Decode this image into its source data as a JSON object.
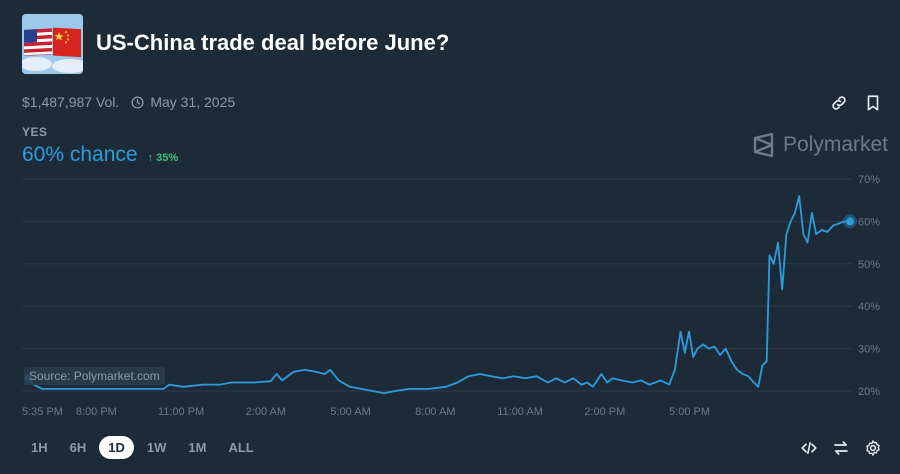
{
  "market": {
    "title": "US-China trade deal before June?",
    "volume": "$1,487,987 Vol.",
    "end_date": "May 31, 2025",
    "outcome_label": "YES",
    "chance": "60% chance",
    "change": "35%",
    "brand": "Polymarket",
    "source": "Source: Polymarket.com"
  },
  "ranges": [
    "1H",
    "6H",
    "1D",
    "1W",
    "1M",
    "ALL"
  ],
  "active_range": "1D",
  "colors": {
    "background": "#1d2b39",
    "line": "#2d9cdb",
    "up": "#3cc07a",
    "muted": "#8d9aa8"
  },
  "icons": {
    "top": [
      "link-icon",
      "bookmark-icon"
    ],
    "bottom": [
      "embed-icon",
      "swap-icon",
      "settings-icon"
    ]
  },
  "chart_data": {
    "type": "line",
    "ylim": [
      18,
      70
    ],
    "y_ticks": [
      20,
      30,
      40,
      50,
      60,
      70
    ],
    "y_tick_labels": [
      "20%",
      "30%",
      "40%",
      "50%",
      "60%",
      "70%"
    ],
    "x_ticks": [
      "5:35 PM",
      "8:00 PM",
      "11:00 PM",
      "2:00 AM",
      "5:00 AM",
      "8:00 AM",
      "11:00 AM",
      "2:00 PM",
      "5:00 PM"
    ],
    "x_tick_hours": [
      0,
      2.42,
      5.42,
      8.42,
      11.42,
      14.42,
      17.42,
      20.42,
      23.42
    ],
    "series": [
      {
        "values": [
          [
            0,
            23
          ],
          [
            0.2,
            21.5
          ],
          [
            0.5,
            20.5
          ],
          [
            1.5,
            20.5
          ],
          [
            3,
            20.5
          ],
          [
            4.8,
            20.5
          ],
          [
            5.0,
            21.5
          ],
          [
            5.5,
            21
          ],
          [
            6.2,
            21.5
          ],
          [
            6.8,
            21.5
          ],
          [
            7.2,
            22
          ],
          [
            8.0,
            22
          ],
          [
            8.6,
            22.3
          ],
          [
            8.8,
            24
          ],
          [
            9.0,
            22.5
          ],
          [
            9.4,
            24.5
          ],
          [
            9.8,
            25
          ],
          [
            10.2,
            24.5
          ],
          [
            10.5,
            24
          ],
          [
            10.7,
            25
          ],
          [
            11.0,
            22.5
          ],
          [
            11.4,
            21
          ],
          [
            11.8,
            20.5
          ],
          [
            12.2,
            20
          ],
          [
            12.6,
            19.5
          ],
          [
            13.0,
            20
          ],
          [
            13.5,
            20.5
          ],
          [
            14.2,
            20.5
          ],
          [
            14.8,
            21
          ],
          [
            15.2,
            22
          ],
          [
            15.6,
            23.5
          ],
          [
            16.0,
            24
          ],
          [
            16.4,
            23.5
          ],
          [
            16.8,
            23
          ],
          [
            17.2,
            23.5
          ],
          [
            17.6,
            23
          ],
          [
            18.0,
            23.5
          ],
          [
            18.4,
            22
          ],
          [
            18.7,
            23
          ],
          [
            19.0,
            22
          ],
          [
            19.3,
            23
          ],
          [
            19.6,
            21.5
          ],
          [
            19.8,
            22
          ],
          [
            20.0,
            21
          ],
          [
            20.3,
            24
          ],
          [
            20.5,
            22
          ],
          [
            20.7,
            23
          ],
          [
            21.0,
            22.5
          ],
          [
            21.4,
            22
          ],
          [
            21.7,
            22.5
          ],
          [
            22.0,
            21.5
          ],
          [
            22.4,
            22.5
          ],
          [
            22.7,
            21.5
          ],
          [
            22.9,
            25
          ],
          [
            23.1,
            34
          ],
          [
            23.25,
            29
          ],
          [
            23.4,
            34
          ],
          [
            23.55,
            28
          ],
          [
            23.7,
            30
          ],
          [
            23.9,
            31
          ],
          [
            24.1,
            30
          ],
          [
            24.3,
            30.5
          ],
          [
            24.5,
            28.5
          ],
          [
            24.7,
            30
          ],
          [
            24.9,
            27
          ],
          [
            25.1,
            25
          ],
          [
            25.3,
            24
          ],
          [
            25.5,
            23.5
          ],
          [
            25.7,
            22
          ],
          [
            25.85,
            21
          ],
          [
            26.0,
            26
          ],
          [
            26.15,
            27
          ],
          [
            26.25,
            52
          ],
          [
            26.4,
            50
          ],
          [
            26.55,
            55
          ],
          [
            26.7,
            44
          ],
          [
            26.85,
            57
          ],
          [
            27.0,
            60
          ],
          [
            27.15,
            62
          ],
          [
            27.3,
            66
          ],
          [
            27.45,
            57
          ],
          [
            27.6,
            55
          ],
          [
            27.75,
            62
          ],
          [
            27.9,
            57
          ],
          [
            28.1,
            58
          ],
          [
            28.3,
            57.5
          ],
          [
            28.5,
            59
          ],
          [
            28.7,
            59.5
          ],
          [
            28.9,
            60
          ],
          [
            29.1,
            60
          ]
        ]
      }
    ]
  }
}
